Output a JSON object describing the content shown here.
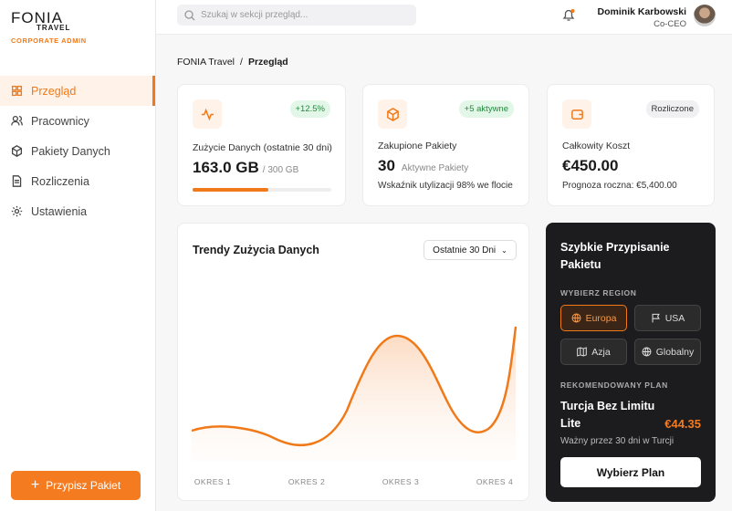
{
  "brand": {
    "name": "FONIA",
    "sub": "TRAVEL",
    "role": "CORPORATE ADMIN"
  },
  "nav": [
    {
      "label": "Przegląd",
      "active": true
    },
    {
      "label": "Pracownicy",
      "active": false
    },
    {
      "label": "Pakiety Danych",
      "active": false
    },
    {
      "label": "Rozliczenia",
      "active": false
    },
    {
      "label": "Ustawienia",
      "active": false
    }
  ],
  "cta": "Przypisz Pakiet",
  "search_placeholder": "Szukaj w sekcji przegląd...",
  "user": {
    "name": "Dominik Karbowski",
    "role": "Co-CEO"
  },
  "breadcrumb": {
    "items": [
      "FONIA Travel",
      "Przegląd"
    ],
    "separator": "/"
  },
  "cards": [
    {
      "badge": "+12.5%",
      "label": "Zużycie Danych (ostatnie 30 dni)",
      "value": "163.0 GB",
      "sub": "/ 300 GB",
      "progress": {
        "used": 163,
        "limit": 300
      }
    },
    {
      "badge": "+5 aktywne",
      "label": "Zakupione Pakiety",
      "value": "30",
      "sub": "Aktywne Pakiety",
      "note": "Wskaźnik utylizacji 98% we flocie"
    },
    {
      "badge": "Rozliczone",
      "label": "Całkowity Koszt",
      "value": "€450.00",
      "note": "Prognoza roczna: €5,400.00"
    }
  ],
  "trend": {
    "title": "Trendy Zużycia Danych",
    "range": "Ostatnie 30 Dni",
    "categories": [
      "OKRES 1",
      "OKRES 2",
      "OKRES 3",
      "OKRES 4"
    ]
  },
  "quick": {
    "title": "Szybkie Przypisanie Pakietu",
    "region_label": "WYBIERZ REGION",
    "regions": [
      {
        "label": "Europa",
        "selected": true
      },
      {
        "label": "USA",
        "selected": false
      },
      {
        "label": "Azja",
        "selected": false
      },
      {
        "label": "Globalny",
        "selected": false
      }
    ],
    "plan_label": "REKOMENDOWANY PLAN",
    "plan": "Turcja Bez Limitu Lite",
    "price": "€44.35",
    "validity": "Ważny przez 30 dni w Turcji",
    "button": "Wybierz Plan"
  }
}
